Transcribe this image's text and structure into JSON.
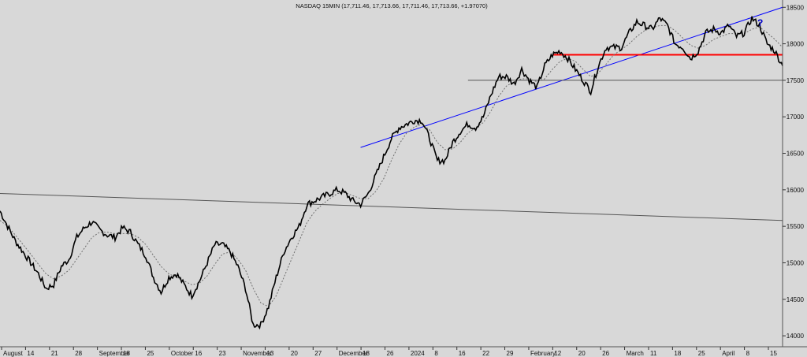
{
  "chart_data": {
    "type": "line",
    "title": "NASDAQ 15MIN (17,711.46, 17,713.66, 17,711.46, 17,713.66, +1.97070)",
    "ylim": [
      13850,
      18600
    ],
    "y_ticks": [
      14000,
      14500,
      15000,
      15500,
      16000,
      16500,
      17000,
      17500,
      18000,
      18500
    ],
    "x_tick_labels": [
      "August",
      "14",
      "21",
      "28",
      "September",
      "18",
      "25",
      "October",
      "16",
      "23",
      "November",
      "13",
      "20",
      "27",
      "December",
      "18",
      "26",
      "2024",
      "8",
      "16",
      "22",
      "29",
      "February",
      "12",
      "20",
      "26",
      "March",
      "11",
      "18",
      "25",
      "April",
      "8",
      "15"
    ],
    "series": [
      {
        "values": [
          15710,
          15500,
          15300,
          15150,
          15000,
          14850,
          14650,
          14700,
          14950,
          15050,
          15350,
          15480,
          15560,
          15450,
          15380,
          15350,
          15480,
          15420,
          15250,
          15100,
          14800,
          14600,
          14800,
          14850,
          14700,
          14550,
          14750,
          15000,
          15250,
          15250,
          15150,
          14950,
          14650,
          14150,
          14150,
          14400,
          14800,
          15150,
          15350,
          15500,
          15800,
          15850,
          15900,
          15950,
          16000,
          15950,
          15850,
          15800,
          15950,
          16200,
          16450,
          16700,
          16850,
          16900,
          16950,
          16950,
          16700,
          16400,
          16400,
          16650,
          16800,
          16900,
          16850,
          17000,
          17300,
          17550,
          17550,
          17450,
          17650,
          17500,
          17400,
          17700,
          17850,
          17900,
          17800,
          17650,
          17500,
          17350,
          17700,
          17950,
          17950,
          17950,
          18150,
          18300,
          18250,
          18200,
          18350,
          18250,
          18000,
          17950,
          17800,
          17900,
          18150,
          18200,
          18150,
          18250,
          18100,
          18150,
          18350,
          18250,
          18000,
          17900,
          17700
        ]
      }
    ],
    "moving_average": [
      15580,
      15500,
      15380,
      15250,
      15120,
      14980,
      14850,
      14780,
      14820,
      14900,
      15050,
      15200,
      15350,
      15420,
      15420,
      15400,
      15400,
      15400,
      15350,
      15250,
      15100,
      14950,
      14850,
      14800,
      14750,
      14700,
      14720,
      14820,
      14980,
      15120,
      15150,
      15050,
      14900,
      14650,
      14450,
      14400,
      14550,
      14800,
      15050,
      15300,
      15550,
      15700,
      15800,
      15880,
      15950,
      15960,
      15920,
      15880,
      15880,
      15980,
      16150,
      16400,
      16620,
      16780,
      16860,
      16900,
      16820,
      16650,
      16550,
      16560,
      16650,
      16780,
      16850,
      16920,
      17080,
      17280,
      17420,
      17480,
      17520,
      17520,
      17480,
      17520,
      17650,
      17760,
      17800,
      17760,
      17650,
      17550,
      17600,
      17720,
      17850,
      17920,
      18000,
      18100,
      18180,
      18220,
      18250,
      18250,
      18180,
      18080,
      17980,
      17940,
      17980,
      18060,
      18100,
      18140,
      18140,
      18140,
      18200,
      18230,
      18150,
      18060,
      17950
    ],
    "annotations": {
      "question_mark": "?",
      "trendlines": [
        {
          "color": "#0000ff",
          "from": [
            47,
            16580
          ],
          "to": [
            102,
            18500
          ]
        },
        {
          "color": "#ff0000",
          "from": [
            72,
            17850
          ],
          "to": [
            102,
            17850
          ]
        },
        {
          "color": "#555555",
          "from": [
            0,
            15950
          ],
          "to": [
            102,
            15580
          ]
        },
        {
          "color": "#555555",
          "from": [
            61,
            17500
          ],
          "to": [
            102,
            17500
          ]
        }
      ]
    },
    "colors": {
      "background": "#d8d8d8",
      "price": "#000000",
      "average": "#707070"
    }
  }
}
